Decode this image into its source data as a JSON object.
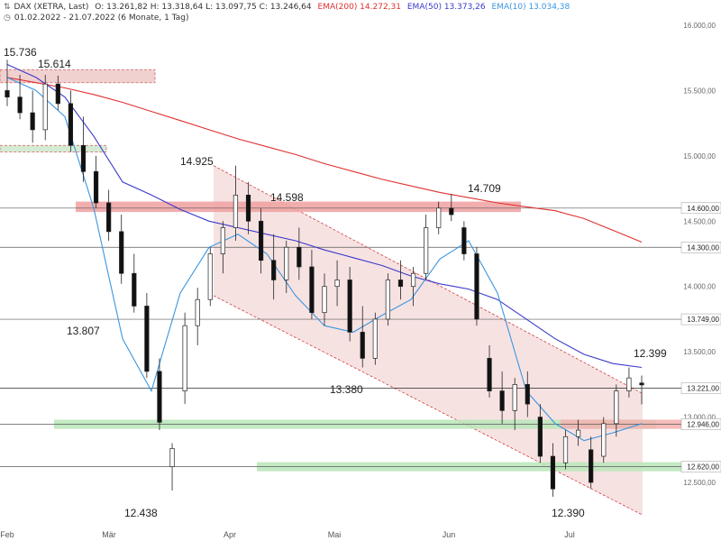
{
  "header": {
    "symbol": "DAX (XETRA, Last)",
    "ohlc": "O: 13.261,82  H: 13.318,64  L: 13.097,75  C: 13.246,64",
    "ema200": "EMA(200) 14.272,31",
    "ema50": "EMA(50) 13.373,26",
    "ema10": "EMA(10) 13.034,38",
    "period": "01.02.2022 - 21.07.2022  (6 Monate, 1 Tag)"
  },
  "chart_data": {
    "type": "candlestick",
    "title": "",
    "x_tick_labels": [
      "Feb",
      "Mär",
      "Apr",
      "Mai",
      "Jun",
      "Jul"
    ],
    "y_ticks": [
      12500,
      13000,
      13500,
      14000,
      14500,
      15000,
      15500,
      16000
    ],
    "y_tick_labels": [
      "12.500,00",
      "13.000,00",
      "13.500,00",
      "14.000,00",
      "14.500,00",
      "15.000,00",
      "15.500,00",
      "16.000,00"
    ],
    "ylim": [
      12300,
      16000
    ],
    "grid": false,
    "horizontal_levels": [
      {
        "value": 14600,
        "label": "14.600,00",
        "color": "#5a5a5a"
      },
      {
        "value": 14300,
        "label": "14.300,00",
        "color": "#5a5a5a"
      },
      {
        "value": 13749,
        "label": "13.749,00",
        "color": "#5a5a5a"
      },
      {
        "value": 13221,
        "label": "13.221,00",
        "color": "#000000"
      },
      {
        "value": 12946,
        "label": "12.946,00",
        "color": "#5a5a5a"
      },
      {
        "value": 12620,
        "label": "12.620,00",
        "color": "#5a5a5a"
      }
    ],
    "price_annotations": [
      "15.736",
      "15.614",
      "14.925",
      "14.598",
      "14.709",
      "13.807",
      "13.380",
      "12.438",
      "12.390",
      "12.399"
    ],
    "zones": [
      {
        "from": 15560,
        "to": 15660,
        "color": "#e8b0b0",
        "style": "dashed",
        "x_from": "Feb",
        "x_to": "Mär"
      },
      {
        "from": 15030,
        "to": 15080,
        "color": "#b6e0b6",
        "style": "dashed",
        "x_from": "Feb",
        "x_to": "Feb"
      },
      {
        "from": 14570,
        "to": 14650,
        "color": "#f0a0a0",
        "style": "solid",
        "x_from": "Feb",
        "x_to": "Jun"
      },
      {
        "from": 12910,
        "to": 12980,
        "color": "#b8e6b8",
        "style": "solid",
        "x_from": "Feb",
        "x_to": "Jul"
      },
      {
        "from": 12910,
        "to": 12980,
        "color": "#f5b0b0",
        "style": "solid",
        "x_from": "Jun",
        "x_to": "Jul"
      },
      {
        "from": 12585,
        "to": 12655,
        "color": "#b8e6b8",
        "style": "solid",
        "x_from": "Apr",
        "x_to": "Jul"
      }
    ],
    "channel": {
      "upper_start": 14925,
      "upper_end": 13180,
      "lower_start": 13930,
      "lower_end": 12250
    },
    "series": [
      {
        "name": "EMA(200)",
        "color": "#e03030",
        "values": [
          15600,
          15560,
          15520,
          15470,
          15410,
          15340,
          15270,
          15200,
          15130,
          15070,
          15010,
          14940,
          14880,
          14820,
          14770,
          14720,
          14680,
          14640,
          14610,
          14580,
          14520,
          14430,
          14340
        ]
      },
      {
        "name": "EMA(50)",
        "color": "#3a3acc",
        "values": [
          15700,
          15600,
          15450,
          15150,
          14800,
          14700,
          14590,
          14500,
          14450,
          14400,
          14350,
          14280,
          14220,
          14160,
          14080,
          14020,
          13980,
          13900,
          13750,
          13600,
          13480,
          13410,
          13380
        ]
      },
      {
        "name": "EMA(10)",
        "color": "#3a96e0",
        "values": [
          15600,
          15500,
          15300,
          14600,
          13600,
          13200,
          13950,
          14300,
          14400,
          14250,
          13930,
          13700,
          13650,
          13780,
          13900,
          14210,
          14350,
          13950,
          13200,
          12950,
          12820,
          12880,
          12950
        ]
      }
    ],
    "candles": [
      {
        "o": 15500,
        "h": 15736,
        "l": 15380,
        "c": 15450
      },
      {
        "o": 15450,
        "h": 15620,
        "l": 15280,
        "c": 15330
      },
      {
        "o": 15330,
        "h": 15500,
        "l": 15100,
        "c": 15200
      },
      {
        "o": 15200,
        "h": 15620,
        "l": 15120,
        "c": 15550
      },
      {
        "o": 15550,
        "h": 15614,
        "l": 15350,
        "c": 15400
      },
      {
        "o": 15400,
        "h": 15500,
        "l": 15030,
        "c": 15080
      },
      {
        "o": 15080,
        "h": 15300,
        "l": 14800,
        "c": 14880
      },
      {
        "o": 14880,
        "h": 15000,
        "l": 14600,
        "c": 14640
      },
      {
        "o": 14640,
        "h": 14740,
        "l": 14350,
        "c": 14420
      },
      {
        "o": 14420,
        "h": 14550,
        "l": 14020,
        "c": 14100
      },
      {
        "o": 14100,
        "h": 14250,
        "l": 13800,
        "c": 13850
      },
      {
        "o": 13850,
        "h": 13950,
        "l": 13300,
        "c": 13350
      },
      {
        "o": 13350,
        "h": 13450,
        "l": 12900,
        "c": 12960
      },
      {
        "o": 12620,
        "h": 12800,
        "l": 12438,
        "c": 12760
      },
      {
        "o": 13200,
        "h": 13800,
        "l": 13100,
        "c": 13700
      },
      {
        "o": 13700,
        "h": 13990,
        "l": 13550,
        "c": 13900
      },
      {
        "o": 13900,
        "h": 14300,
        "l": 13850,
        "c": 14250
      },
      {
        "o": 14250,
        "h": 14500,
        "l": 14100,
        "c": 14450
      },
      {
        "o": 14450,
        "h": 14925,
        "l": 14350,
        "c": 14700
      },
      {
        "o": 14700,
        "h": 14800,
        "l": 14400,
        "c": 14500
      },
      {
        "o": 14500,
        "h": 14598,
        "l": 14100,
        "c": 14200
      },
      {
        "o": 14200,
        "h": 14400,
        "l": 13900,
        "c": 14050
      },
      {
        "o": 14050,
        "h": 14350,
        "l": 13950,
        "c": 14300
      },
      {
        "o": 14300,
        "h": 14450,
        "l": 14050,
        "c": 14150
      },
      {
        "o": 14150,
        "h": 14280,
        "l": 13750,
        "c": 13800
      },
      {
        "o": 13800,
        "h": 14100,
        "l": 13700,
        "c": 14000
      },
      {
        "o": 14000,
        "h": 14200,
        "l": 13850,
        "c": 14050
      },
      {
        "o": 14050,
        "h": 14150,
        "l": 13580,
        "c": 13650
      },
      {
        "o": 13650,
        "h": 13850,
        "l": 13380,
        "c": 13450
      },
      {
        "o": 13450,
        "h": 13800,
        "l": 13400,
        "c": 13750
      },
      {
        "o": 13750,
        "h": 14100,
        "l": 13700,
        "c": 14050
      },
      {
        "o": 14050,
        "h": 14200,
        "l": 13900,
        "c": 14000
      },
      {
        "o": 14000,
        "h": 14150,
        "l": 13850,
        "c": 14100
      },
      {
        "o": 14100,
        "h": 14550,
        "l": 14050,
        "c": 14450
      },
      {
        "o": 14450,
        "h": 14650,
        "l": 14400,
        "c": 14600
      },
      {
        "o": 14600,
        "h": 14709,
        "l": 14500,
        "c": 14550
      },
      {
        "o": 14450,
        "h": 14500,
        "l": 14200,
        "c": 14250
      },
      {
        "o": 14250,
        "h": 14300,
        "l": 13700,
        "c": 13750
      },
      {
        "o": 13450,
        "h": 13550,
        "l": 13150,
        "c": 13200
      },
      {
        "o": 13200,
        "h": 13350,
        "l": 12950,
        "c": 13050
      },
      {
        "o": 13050,
        "h": 13300,
        "l": 12900,
        "c": 13250
      },
      {
        "o": 13250,
        "h": 13350,
        "l": 13000,
        "c": 13100
      },
      {
        "o": 13000,
        "h": 13100,
        "l": 12650,
        "c": 12700
      },
      {
        "o": 12700,
        "h": 12800,
        "l": 12390,
        "c": 12450
      },
      {
        "o": 12650,
        "h": 12900,
        "l": 12600,
        "c": 12850
      },
      {
        "o": 12850,
        "h": 12980,
        "l": 12780,
        "c": 12900
      },
      {
        "o": 12750,
        "h": 12850,
        "l": 12450,
        "c": 12500
      },
      {
        "o": 12700,
        "h": 13000,
        "l": 12650,
        "c": 12950
      },
      {
        "o": 12950,
        "h": 13250,
        "l": 12850,
        "c": 13200
      },
      {
        "o": 13200,
        "h": 13380,
        "l": 13150,
        "c": 13300
      },
      {
        "o": 13261,
        "h": 13318,
        "l": 13097,
        "c": 13246
      }
    ]
  }
}
